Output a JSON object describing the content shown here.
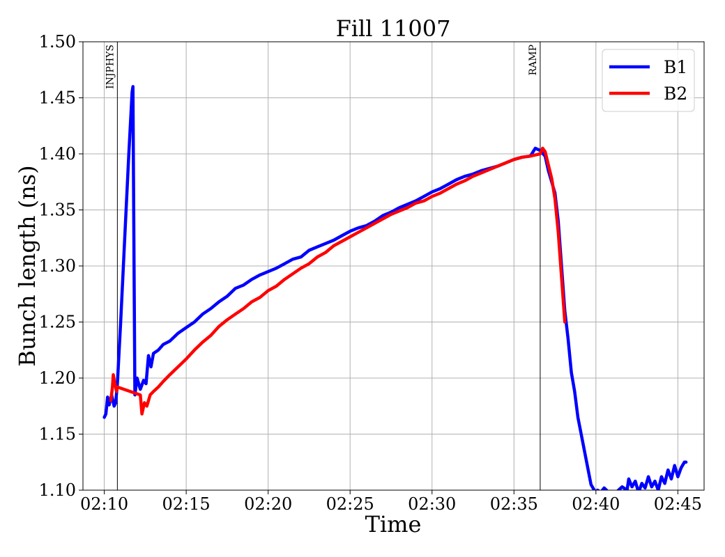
{
  "chart_data": {
    "type": "line",
    "title": "Fill 11007",
    "xlabel": "Time",
    "ylabel": "Bunch length (ns)",
    "x_unit": "minutes after 02:00",
    "xlim": [
      8.7,
      46.6
    ],
    "ylim": [
      1.1,
      1.5
    ],
    "xticks": [
      10,
      15,
      20,
      25,
      30,
      35,
      40,
      45
    ],
    "xtick_labels": [
      "02:10",
      "02:15",
      "02:20",
      "02:25",
      "02:30",
      "02:35",
      "02:40",
      "02:45"
    ],
    "yticks": [
      1.1,
      1.15,
      1.2,
      1.25,
      1.3,
      1.35,
      1.4,
      1.45,
      1.5
    ],
    "ytick_labels": [
      "1.10",
      "1.15",
      "1.20",
      "1.25",
      "1.30",
      "1.35",
      "1.40",
      "1.45",
      "1.50"
    ],
    "grid": true,
    "legend_position": "top-right",
    "events": [
      {
        "label": "INJPHYS",
        "x": 10.8
      },
      {
        "label": "RAMP",
        "x": 36.6
      }
    ],
    "series": [
      {
        "name": "B1",
        "color": "#0000ff",
        "points": [
          [
            10.0,
            1.165
          ],
          [
            10.1,
            1.168
          ],
          [
            10.2,
            1.183
          ],
          [
            10.3,
            1.176
          ],
          [
            10.45,
            1.185
          ],
          [
            10.6,
            1.175
          ],
          [
            10.7,
            1.178
          ],
          [
            10.8,
            1.195
          ],
          [
            11.0,
            1.25
          ],
          [
            11.3,
            1.34
          ],
          [
            11.5,
            1.4
          ],
          [
            11.7,
            1.455
          ],
          [
            11.75,
            1.46
          ],
          [
            11.82,
            1.3
          ],
          [
            11.87,
            1.185
          ],
          [
            12.0,
            1.2
          ],
          [
            12.2,
            1.19
          ],
          [
            12.4,
            1.198
          ],
          [
            12.55,
            1.195
          ],
          [
            12.7,
            1.22
          ],
          [
            12.85,
            1.21
          ],
          [
            13.0,
            1.222
          ],
          [
            13.3,
            1.225
          ],
          [
            13.6,
            1.23
          ],
          [
            14.0,
            1.233
          ],
          [
            14.5,
            1.24
          ],
          [
            15.0,
            1.245
          ],
          [
            15.5,
            1.25
          ],
          [
            16.0,
            1.257
          ],
          [
            16.5,
            1.262
          ],
          [
            17.0,
            1.268
          ],
          [
            17.5,
            1.273
          ],
          [
            18.0,
            1.28
          ],
          [
            18.5,
            1.283
          ],
          [
            19.0,
            1.288
          ],
          [
            19.5,
            1.292
          ],
          [
            20.0,
            1.295
          ],
          [
            20.5,
            1.298
          ],
          [
            21.0,
            1.302
          ],
          [
            21.5,
            1.306
          ],
          [
            22.0,
            1.308
          ],
          [
            22.5,
            1.314
          ],
          [
            23.0,
            1.317
          ],
          [
            23.5,
            1.32
          ],
          [
            24.0,
            1.323
          ],
          [
            24.5,
            1.327
          ],
          [
            25.0,
            1.331
          ],
          [
            25.5,
            1.334
          ],
          [
            26.0,
            1.336
          ],
          [
            26.5,
            1.34
          ],
          [
            27.0,
            1.345
          ],
          [
            27.5,
            1.348
          ],
          [
            28.0,
            1.352
          ],
          [
            28.5,
            1.355
          ],
          [
            29.0,
            1.358
          ],
          [
            29.5,
            1.362
          ],
          [
            30.0,
            1.366
          ],
          [
            30.5,
            1.369
          ],
          [
            31.0,
            1.373
          ],
          [
            31.5,
            1.377
          ],
          [
            32.0,
            1.38
          ],
          [
            32.5,
            1.382
          ],
          [
            33.0,
            1.385
          ],
          [
            33.5,
            1.387
          ],
          [
            34.0,
            1.389
          ],
          [
            34.5,
            1.392
          ],
          [
            35.0,
            1.395
          ],
          [
            35.5,
            1.397
          ],
          [
            36.0,
            1.398
          ],
          [
            36.3,
            1.405
          ],
          [
            36.6,
            1.403
          ],
          [
            36.9,
            1.398
          ],
          [
            37.1,
            1.385
          ],
          [
            37.3,
            1.375
          ],
          [
            37.5,
            1.365
          ],
          [
            37.7,
            1.34
          ],
          [
            37.9,
            1.3
          ],
          [
            38.1,
            1.26
          ],
          [
            38.3,
            1.235
          ],
          [
            38.5,
            1.205
          ],
          [
            38.7,
            1.188
          ],
          [
            38.9,
            1.165
          ],
          [
            39.1,
            1.15
          ],
          [
            39.3,
            1.135
          ],
          [
            39.5,
            1.12
          ],
          [
            39.7,
            1.105
          ],
          [
            39.9,
            1.1
          ]
        ]
      },
      {
        "name": "B2",
        "color": "#ff0000",
        "points": [
          [
            10.4,
            1.18
          ],
          [
            10.5,
            1.192
          ],
          [
            10.55,
            1.203
          ],
          [
            10.65,
            1.195
          ],
          [
            10.75,
            1.188
          ],
          [
            10.8,
            1.192
          ],
          [
            12.2,
            1.185
          ],
          [
            12.3,
            1.168
          ],
          [
            12.45,
            1.178
          ],
          [
            12.6,
            1.175
          ],
          [
            12.8,
            1.185
          ],
          [
            13.0,
            1.188
          ],
          [
            13.3,
            1.192
          ],
          [
            13.6,
            1.197
          ],
          [
            14.0,
            1.203
          ],
          [
            14.5,
            1.21
          ],
          [
            15.0,
            1.217
          ],
          [
            15.5,
            1.225
          ],
          [
            16.0,
            1.232
          ],
          [
            16.5,
            1.238
          ],
          [
            17.0,
            1.246
          ],
          [
            17.5,
            1.252
          ],
          [
            18.0,
            1.257
          ],
          [
            18.5,
            1.262
          ],
          [
            19.0,
            1.268
          ],
          [
            19.5,
            1.272
          ],
          [
            20.0,
            1.278
          ],
          [
            20.5,
            1.282
          ],
          [
            21.0,
            1.288
          ],
          [
            21.5,
            1.293
          ],
          [
            22.0,
            1.298
          ],
          [
            22.5,
            1.302
          ],
          [
            23.0,
            1.308
          ],
          [
            23.5,
            1.312
          ],
          [
            24.0,
            1.318
          ],
          [
            24.5,
            1.322
          ],
          [
            25.0,
            1.326
          ],
          [
            25.5,
            1.33
          ],
          [
            26.0,
            1.334
          ],
          [
            26.5,
            1.338
          ],
          [
            27.0,
            1.342
          ],
          [
            27.5,
            1.346
          ],
          [
            28.0,
            1.349
          ],
          [
            28.5,
            1.352
          ],
          [
            29.0,
            1.356
          ],
          [
            29.5,
            1.358
          ],
          [
            30.0,
            1.362
          ],
          [
            30.5,
            1.365
          ],
          [
            31.0,
            1.369
          ],
          [
            31.5,
            1.373
          ],
          [
            32.0,
            1.376
          ],
          [
            32.5,
            1.38
          ],
          [
            33.0,
            1.383
          ],
          [
            33.5,
            1.386
          ],
          [
            34.0,
            1.389
          ],
          [
            34.5,
            1.392
          ],
          [
            35.0,
            1.395
          ],
          [
            35.5,
            1.397
          ],
          [
            36.0,
            1.398
          ],
          [
            36.3,
            1.399
          ],
          [
            36.6,
            1.4
          ],
          [
            36.75,
            1.405
          ],
          [
            36.9,
            1.402
          ],
          [
            37.1,
            1.39
          ],
          [
            37.3,
            1.378
          ],
          [
            37.5,
            1.36
          ],
          [
            37.7,
            1.33
          ],
          [
            37.9,
            1.29
          ],
          [
            38.1,
            1.25
          ]
        ]
      }
    ],
    "b1_late_segment": [
      [
        40.1,
        1.1
      ],
      [
        40.3,
        1.098
      ],
      [
        40.5,
        1.102
      ],
      [
        41.0,
        1.095
      ],
      [
        41.6,
        1.103
      ],
      [
        41.9,
        1.1
      ],
      [
        42.0,
        1.11
      ],
      [
        42.2,
        1.103
      ],
      [
        42.4,
        1.108
      ],
      [
        42.6,
        1.098
      ],
      [
        42.8,
        1.106
      ],
      [
        43.0,
        1.102
      ],
      [
        43.2,
        1.112
      ],
      [
        43.4,
        1.103
      ],
      [
        43.6,
        1.108
      ],
      [
        43.8,
        1.1
      ],
      [
        44.0,
        1.112
      ],
      [
        44.2,
        1.106
      ],
      [
        44.4,
        1.118
      ],
      [
        44.6,
        1.11
      ],
      [
        44.8,
        1.122
      ],
      [
        45.0,
        1.112
      ],
      [
        45.2,
        1.12
      ],
      [
        45.4,
        1.125
      ],
      [
        45.5,
        1.125
      ]
    ]
  }
}
